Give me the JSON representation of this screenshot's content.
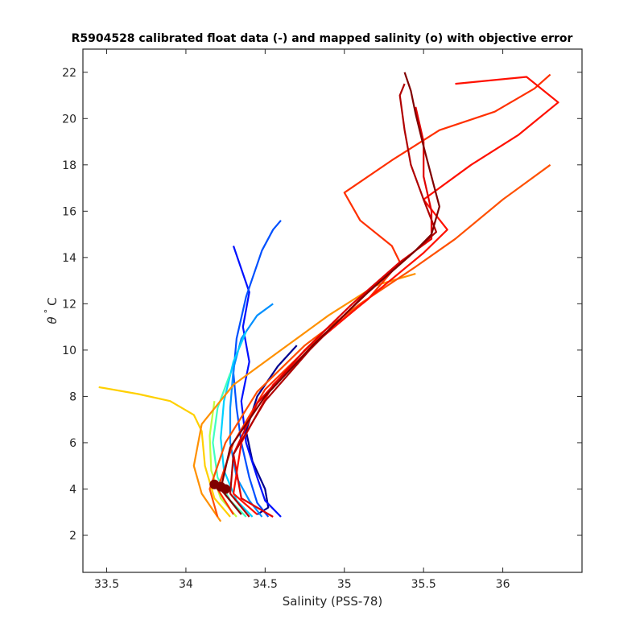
{
  "chart_data": {
    "type": "line",
    "title": "R5904528 calibrated float data (-) and mapped salinity (o) with objective error",
    "xlabel": "Salinity (PSS-78)",
    "ylabel_theta": "θ",
    "ylabel_deg": "°",
    "ylabel_unit": "C",
    "xlim": [
      33.35,
      36.5
    ],
    "ylim": [
      0.4,
      23.0
    ],
    "xticks": [
      33.5,
      34,
      34.5,
      35,
      35.5,
      36
    ],
    "xtick_labels": [
      "33.5",
      "34",
      "34.5",
      "35",
      "35.5",
      "36"
    ],
    "yticks": [
      2,
      4,
      6,
      8,
      10,
      12,
      14,
      16,
      18,
      20,
      22
    ],
    "ytick_labels": [
      "2",
      "4",
      "6",
      "8",
      "10",
      "12",
      "14",
      "16",
      "18",
      "20",
      "22"
    ],
    "grid": false,
    "colormap": "jet",
    "series": [
      {
        "color": "#00008f",
        "points": [
          [
            34.45,
            2.9
          ],
          [
            34.52,
            3.2
          ],
          [
            34.5,
            4.0
          ],
          [
            34.42,
            5.2
          ],
          [
            34.38,
            6.5
          ],
          [
            34.45,
            8.0
          ],
          [
            34.58,
            9.3
          ],
          [
            34.7,
            10.2
          ]
        ]
      },
      {
        "color": "#0010ff",
        "points": [
          [
            34.6,
            2.8
          ],
          [
            34.5,
            3.5
          ],
          [
            34.45,
            4.5
          ],
          [
            34.38,
            6.0
          ],
          [
            34.35,
            7.8
          ],
          [
            34.4,
            9.5
          ],
          [
            34.36,
            11.0
          ],
          [
            34.4,
            12.5
          ],
          [
            34.3,
            14.5
          ]
        ]
      },
      {
        "color": "#0050ff",
        "points": [
          [
            34.52,
            2.8
          ],
          [
            34.45,
            3.4
          ],
          [
            34.4,
            4.5
          ],
          [
            34.35,
            6.0
          ],
          [
            34.32,
            7.5
          ],
          [
            34.3,
            9.0
          ],
          [
            34.32,
            10.5
          ],
          [
            34.38,
            12.3
          ],
          [
            34.48,
            14.3
          ],
          [
            34.55,
            15.2
          ],
          [
            34.6,
            15.6
          ]
        ]
      },
      {
        "color": "#0090ff",
        "points": [
          [
            34.48,
            2.8
          ],
          [
            34.4,
            3.5
          ],
          [
            34.32,
            4.5
          ],
          [
            34.28,
            6.0
          ],
          [
            34.28,
            7.5
          ],
          [
            34.3,
            9.2
          ],
          [
            34.35,
            10.5
          ],
          [
            34.45,
            11.5
          ],
          [
            34.55,
            12.0
          ]
        ]
      },
      {
        "color": "#00d0ff",
        "points": [
          [
            34.42,
            2.8
          ],
          [
            34.32,
            3.5
          ],
          [
            34.24,
            4.8
          ],
          [
            34.22,
            6.2
          ],
          [
            34.24,
            7.8
          ],
          [
            34.3,
            9.5
          ],
          [
            34.38,
            10.8
          ]
        ]
      },
      {
        "color": "#40ffbf",
        "points": [
          [
            34.38,
            2.8
          ],
          [
            34.28,
            3.5
          ],
          [
            34.2,
            4.5
          ],
          [
            34.17,
            6.0
          ],
          [
            34.2,
            7.5
          ],
          [
            34.28,
            9.0
          ]
        ]
      },
      {
        "color": "#c0ff40",
        "points": [
          [
            34.32,
            2.8
          ],
          [
            34.22,
            3.6
          ],
          [
            34.16,
            4.8
          ],
          [
            34.15,
            6.3
          ],
          [
            34.18,
            7.8
          ]
        ]
      },
      {
        "color": "#ffd000",
        "points": [
          [
            34.28,
            2.8
          ],
          [
            34.18,
            3.6
          ],
          [
            34.12,
            5.0
          ],
          [
            34.1,
            6.5
          ],
          [
            34.05,
            7.2
          ],
          [
            33.9,
            7.8
          ],
          [
            33.7,
            8.1
          ],
          [
            33.45,
            8.4
          ]
        ]
      },
      {
        "color": "#ff9000",
        "points": [
          [
            34.22,
            2.6
          ],
          [
            34.1,
            3.8
          ],
          [
            34.05,
            5.0
          ],
          [
            34.1,
            6.8
          ],
          [
            34.3,
            8.5
          ],
          [
            34.6,
            10.0
          ],
          [
            34.9,
            11.5
          ],
          [
            35.2,
            12.8
          ],
          [
            35.45,
            13.3
          ]
        ]
      },
      {
        "color": "#ff5000",
        "points": [
          [
            34.2,
            2.8
          ],
          [
            34.15,
            4.0
          ],
          [
            34.25,
            6.0
          ],
          [
            34.45,
            8.2
          ],
          [
            34.75,
            10.2
          ],
          [
            35.1,
            12.0
          ],
          [
            35.45,
            13.6
          ],
          [
            35.7,
            14.8
          ],
          [
            36.0,
            16.5
          ],
          [
            36.3,
            18.0
          ]
        ]
      },
      {
        "color": "#ff3000",
        "points": [
          [
            34.3,
            2.9
          ],
          [
            34.2,
            4.0
          ],
          [
            34.3,
            6.0
          ],
          [
            34.5,
            8.3
          ],
          [
            34.8,
            10.3
          ],
          [
            35.15,
            12.2
          ],
          [
            35.35,
            13.8
          ],
          [
            35.3,
            14.5
          ],
          [
            35.1,
            15.6
          ],
          [
            35.0,
            16.8
          ],
          [
            35.3,
            18.2
          ],
          [
            35.6,
            19.5
          ],
          [
            35.95,
            20.3
          ],
          [
            36.2,
            21.3
          ],
          [
            36.3,
            21.9
          ]
        ]
      },
      {
        "color": "#ff1000",
        "points": [
          [
            34.45,
            2.9
          ],
          [
            34.3,
            3.8
          ],
          [
            34.35,
            6.0
          ],
          [
            34.55,
            8.5
          ],
          [
            34.85,
            10.5
          ],
          [
            35.2,
            12.5
          ],
          [
            35.5,
            14.2
          ],
          [
            35.65,
            15.2
          ],
          [
            35.5,
            16.5
          ],
          [
            35.8,
            18.0
          ],
          [
            36.1,
            19.3
          ],
          [
            36.35,
            20.7
          ],
          [
            36.15,
            21.8
          ],
          [
            35.7,
            21.5
          ]
        ]
      },
      {
        "color": "#e00000",
        "points": [
          [
            34.55,
            2.8
          ],
          [
            34.35,
            3.6
          ],
          [
            34.3,
            5.5
          ],
          [
            34.45,
            7.7
          ],
          [
            34.75,
            10.0
          ],
          [
            35.05,
            12.0
          ],
          [
            35.35,
            13.8
          ],
          [
            35.55,
            14.8
          ],
          [
            35.55,
            16.0
          ],
          [
            35.5,
            17.5
          ],
          [
            35.5,
            19.0
          ],
          [
            35.45,
            20.5
          ]
        ]
      },
      {
        "color": "#b00000",
        "points": [
          [
            34.4,
            2.8
          ],
          [
            34.28,
            3.8
          ],
          [
            34.3,
            5.5
          ],
          [
            34.5,
            7.8
          ],
          [
            34.78,
            10.0
          ],
          [
            35.1,
            12.2
          ],
          [
            35.4,
            14.0
          ],
          [
            35.58,
            15.1
          ],
          [
            35.5,
            16.5
          ],
          [
            35.42,
            18.0
          ],
          [
            35.38,
            19.5
          ],
          [
            35.35,
            21.0
          ],
          [
            35.38,
            21.5
          ]
        ]
      },
      {
        "color": "#800000",
        "points": [
          [
            34.35,
            2.9
          ],
          [
            34.22,
            4.0
          ],
          [
            34.28,
            5.8
          ],
          [
            34.5,
            8.0
          ],
          [
            34.8,
            10.2
          ],
          [
            35.15,
            12.5
          ],
          [
            35.45,
            14.3
          ],
          [
            35.55,
            15.0
          ],
          [
            35.6,
            16.2
          ],
          [
            35.55,
            17.5
          ],
          [
            35.5,
            18.8
          ],
          [
            35.45,
            20.2
          ],
          [
            35.42,
            21.2
          ],
          [
            35.38,
            22.0
          ]
        ]
      }
    ],
    "mapped_points": [
      {
        "color": "#800000",
        "s": 34.22,
        "t": 4.1
      },
      {
        "color": "#800000",
        "s": 34.18,
        "t": 4.2
      },
      {
        "color": "#800000",
        "s": 34.25,
        "t": 4.0
      }
    ]
  }
}
